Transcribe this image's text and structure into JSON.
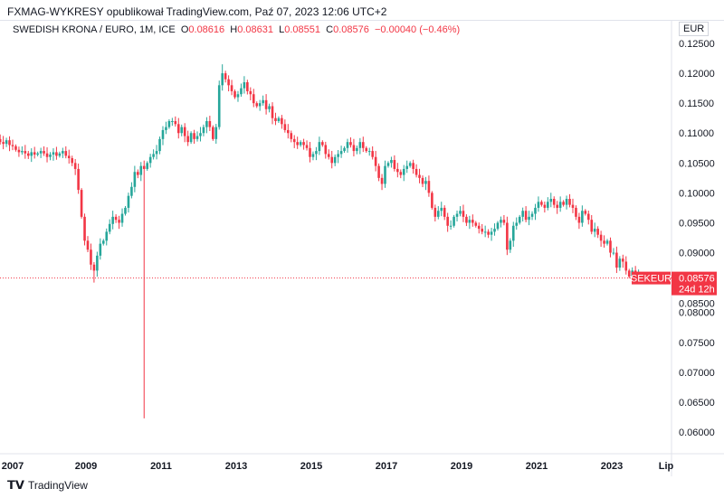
{
  "header": {
    "published": "FXMAG-WYKRESY opublikował TradingView.com, Paź 07, 2023 12:06 UTC+2"
  },
  "legend": {
    "symbol": "SWEDISH KRONA / EURO, 1M, ICE",
    "o_label": "O",
    "o": "0.08616",
    "h_label": "H",
    "h": "0.08631",
    "l_label": "L",
    "l": "0.08551",
    "c_label": "C",
    "c": "0.08576",
    "change": "−0.00040 (−0.46%)"
  },
  "currency": "EUR",
  "price_tag": {
    "symbol": "SEKEUR",
    "price": "0.08576",
    "countdown": "24d 12h"
  },
  "logo": "TradingView",
  "colors": {
    "up": "#26a69a",
    "down": "#f23645"
  },
  "chart_data": {
    "type": "candlestick",
    "interval": "1M",
    "closes": [
      0.1095,
      0.109,
      0.1085,
      0.1082,
      0.1088,
      0.108,
      0.1078,
      0.1072,
      0.1068,
      0.107,
      0.1066,
      0.1062,
      0.1068,
      0.1064,
      0.1066,
      0.107,
      0.1066,
      0.106,
      0.1064,
      0.1068,
      0.1062,
      0.1066,
      0.107,
      0.1062,
      0.1058,
      0.105,
      0.104,
      0.1005,
      0.096,
      0.092,
      0.0905,
      0.088,
      0.087,
      0.0895,
      0.0915,
      0.092,
      0.0935,
      0.0948,
      0.096,
      0.0955,
      0.095,
      0.0965,
      0.0975,
      0.0995,
      0.101,
      0.1035,
      0.103,
      0.1045,
      0.104,
      0.105,
      0.106,
      0.1065,
      0.107,
      0.109,
      0.1105,
      0.111,
      0.112,
      0.112,
      0.1115,
      0.11,
      0.111,
      0.1095,
      0.1085,
      0.11,
      0.109,
      0.1095,
      0.11,
      0.111,
      0.112,
      0.111,
      0.109,
      0.111,
      0.118,
      0.12,
      0.119,
      0.118,
      0.117,
      0.116,
      0.1165,
      0.1175,
      0.1185,
      0.117,
      0.1165,
      0.115,
      0.1145,
      0.115,
      0.1155,
      0.114,
      0.1145,
      0.1125,
      0.112,
      0.1125,
      0.1115,
      0.1105,
      0.11,
      0.109,
      0.1085,
      0.108,
      0.1085,
      0.108,
      0.1075,
      0.106,
      0.1065,
      0.107,
      0.1085,
      0.108,
      0.1065,
      0.106,
      0.105,
      0.106,
      0.1065,
      0.107,
      0.1075,
      0.1085,
      0.108,
      0.107,
      0.1075,
      0.1085,
      0.1075,
      0.107,
      0.107,
      0.106,
      0.1045,
      0.1025,
      0.1015,
      0.1045,
      0.105,
      0.1055,
      0.104,
      0.1035,
      0.103,
      0.104,
      0.1045,
      0.105,
      0.104,
      0.103,
      0.1025,
      0.1015,
      0.102,
      0.1,
      0.0975,
      0.096,
      0.097,
      0.0975,
      0.096,
      0.0945,
      0.0945,
      0.096,
      0.0965,
      0.097,
      0.096,
      0.095,
      0.0955,
      0.095,
      0.0945,
      0.094,
      0.0935,
      0.0935,
      0.093,
      0.0935,
      0.094,
      0.095,
      0.0955,
      0.095,
      0.0905,
      0.092,
      0.0945,
      0.095,
      0.096,
      0.097,
      0.0955,
      0.096,
      0.0965,
      0.0975,
      0.0985,
      0.098,
      0.0975,
      0.0985,
      0.099,
      0.098,
      0.0975,
      0.0985,
      0.098,
      0.099,
      0.098,
      0.0975,
      0.096,
      0.095,
      0.097,
      0.0965,
      0.0955,
      0.0935,
      0.094,
      0.093,
      0.092,
      0.0915,
      0.092,
      0.09,
      0.09,
      0.0875,
      0.089,
      0.0885,
      0.087,
      0.086,
      0.087,
      0.086,
      0.08616,
      0.08576
    ],
    "notable_wicks": [
      {
        "month": "2009-03",
        "low": 0.085
      },
      {
        "month": "2010-07",
        "low": 0.0623
      },
      {
        "month": "2012-08",
        "high": 0.1215
      }
    ],
    "last": {
      "open": 0.08616,
      "high": 0.08631,
      "low": 0.08551,
      "close": 0.08576
    },
    "ylim": [
      0.058,
      0.126
    ],
    "y_ticks": [
      "0.12500",
      "0.12000",
      "0.11500",
      "0.11000",
      "0.10500",
      "0.10000",
      "0.09500",
      "0.09000",
      "0.08500",
      "0.08000",
      "0.07500",
      "0.07000",
      "0.06500",
      "0.06000"
    ],
    "x_ticks": [
      "2007",
      "2009",
      "2011",
      "2013",
      "2015",
      "2017",
      "2019",
      "2021",
      "2023",
      "Lip"
    ]
  }
}
